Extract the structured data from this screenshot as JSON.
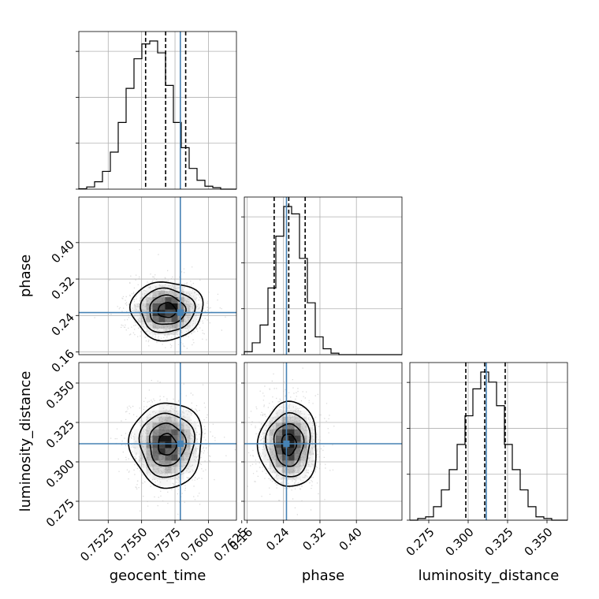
{
  "chart_data": {
    "type": "corner",
    "parameters": [
      "geocent_time",
      "phase",
      "luminosity_distance"
    ],
    "axes": {
      "geocent_time": {
        "label": "geocent_time",
        "range": [
          0.7503,
          0.7621
        ],
        "ticks": [
          0.7525,
          0.755,
          0.7575,
          0.76,
          0.7625
        ],
        "tick_labels": [
          "0.7525",
          "0.7550",
          "0.7575",
          "0.7600",
          "0.7625"
        ]
      },
      "phase": {
        "label": "phase",
        "range": [
          0.154,
          0.5
        ],
        "ticks": [
          0.16,
          0.24,
          0.32,
          0.4
        ],
        "tick_labels": [
          "0.16",
          "0.24",
          "0.32",
          "0.40"
        ]
      },
      "luminosity_distance": {
        "label": "luminosity_distance",
        "range": [
          0.263,
          0.363
        ],
        "ticks": [
          0.275,
          0.3,
          0.325,
          0.35
        ],
        "tick_labels": [
          "0.275",
          "0.300",
          "0.325",
          "0.350"
        ]
      }
    },
    "injection": {
      "geocent_time": 0.7579,
      "phase": 0.2465,
      "luminosity_distance": 0.3115
    },
    "histograms": {
      "geocent_time": {
        "bin_edges": [
          0.7503,
          0.75089,
          0.75148,
          0.75207,
          0.75266,
          0.75325,
          0.75384,
          0.75443,
          0.75502,
          0.75561,
          0.7562,
          0.75679,
          0.75738,
          0.75797,
          0.75856,
          0.75915,
          0.75974,
          0.76033,
          0.76092,
          0.76151,
          0.7621
        ],
        "counts": [
          0.3,
          1.5,
          5,
          12,
          25,
          45,
          68,
          88,
          98,
          100,
          92,
          70,
          45,
          28,
          14,
          6,
          2,
          1,
          0,
          0
        ],
        "quantiles": [
          0.7553,
          0.7568,
          0.7583
        ]
      },
      "phase": {
        "bin_edges": [
          0.154,
          0.1713,
          0.1886,
          0.2059,
          0.2232,
          0.2405,
          0.2578,
          0.2751,
          0.2924,
          0.3097,
          0.327,
          0.3443,
          0.3616,
          0.3789,
          0.3962,
          0.4135,
          0.4308,
          0.4481,
          0.4654,
          0.4827,
          0.5
        ],
        "counts": [
          2,
          8,
          20,
          45,
          80,
          100,
          95,
          65,
          35,
          12,
          4,
          1,
          0,
          0,
          0,
          0,
          0,
          0,
          0,
          0
        ],
        "quantiles": [
          0.2195,
          0.2515,
          0.2875
        ]
      },
      "luminosity_distance": {
        "bin_edges": [
          0.263,
          0.268,
          0.273,
          0.278,
          0.283,
          0.288,
          0.293,
          0.298,
          0.303,
          0.308,
          0.313,
          0.318,
          0.323,
          0.328,
          0.333,
          0.338,
          0.343,
          0.348,
          0.353,
          0.358,
          0.363
        ],
        "counts": [
          0,
          1,
          2,
          8,
          18,
          30,
          45,
          62,
          78,
          88,
          82,
          68,
          45,
          30,
          18,
          8,
          2,
          1,
          0,
          0
        ],
        "quantiles": [
          0.2985,
          0.3105,
          0.3235
        ]
      }
    },
    "joint": [
      {
        "x": "geocent_time",
        "y": "phase",
        "center": [
          0.7569,
          0.2515
        ],
        "sigma": [
          0.00135,
          0.032
        ]
      },
      {
        "x": "geocent_time",
        "y": "luminosity_distance",
        "center": [
          0.7569,
          0.311
        ],
        "sigma": [
          0.00135,
          0.0135
        ]
      },
      {
        "x": "phase",
        "y": "luminosity_distance",
        "center": [
          0.2515,
          0.311
        ],
        "sigma": [
          0.032,
          0.0135
        ]
      }
    ],
    "grid": true,
    "colors": {
      "injection": "#4682b4",
      "quantile": "#000000",
      "density": "#000000",
      "scatter": "#bdbdbd"
    }
  }
}
